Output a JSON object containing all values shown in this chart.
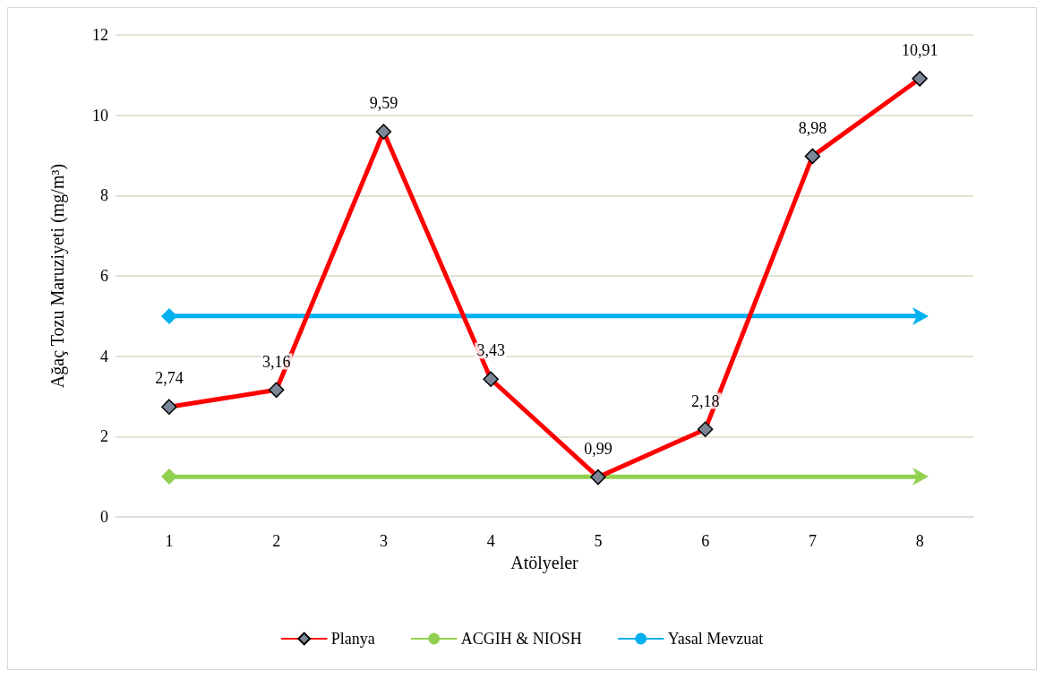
{
  "chart_data": {
    "type": "line",
    "xlabel": "Atölyeler",
    "ylabel": "Ağaç Tozu Maruziyeti (mg/m³)",
    "categories": [
      "1",
      "2",
      "3",
      "4",
      "5",
      "6",
      "7",
      "8"
    ],
    "series": [
      {
        "name": "Planya",
        "color": "#ff0000",
        "values": [
          2.74,
          3.16,
          9.59,
          3.43,
          0.99,
          2.18,
          8.98,
          10.91
        ],
        "value_labels": [
          "2,74",
          "3,16",
          "9,59",
          "3,43",
          "0,99",
          "2,18",
          "8,98",
          "10,91"
        ]
      },
      {
        "name": "ACGIH & NIOSH",
        "color": "#92d050",
        "marker": "none",
        "values": [
          1,
          1,
          1,
          1,
          1,
          1,
          1,
          1
        ]
      },
      {
        "name": "Yasal Mevzuat",
        "color": "#00b0f0",
        "marker": "none",
        "values": [
          5,
          5,
          5,
          5,
          5,
          5,
          5,
          5
        ]
      }
    ],
    "ylim": [
      0,
      12
    ],
    "yticks": [
      0,
      2,
      4,
      6,
      8,
      10,
      12
    ],
    "grid": "y",
    "legend": "bottom",
    "marker": "diamond",
    "line_style": "solid"
  }
}
